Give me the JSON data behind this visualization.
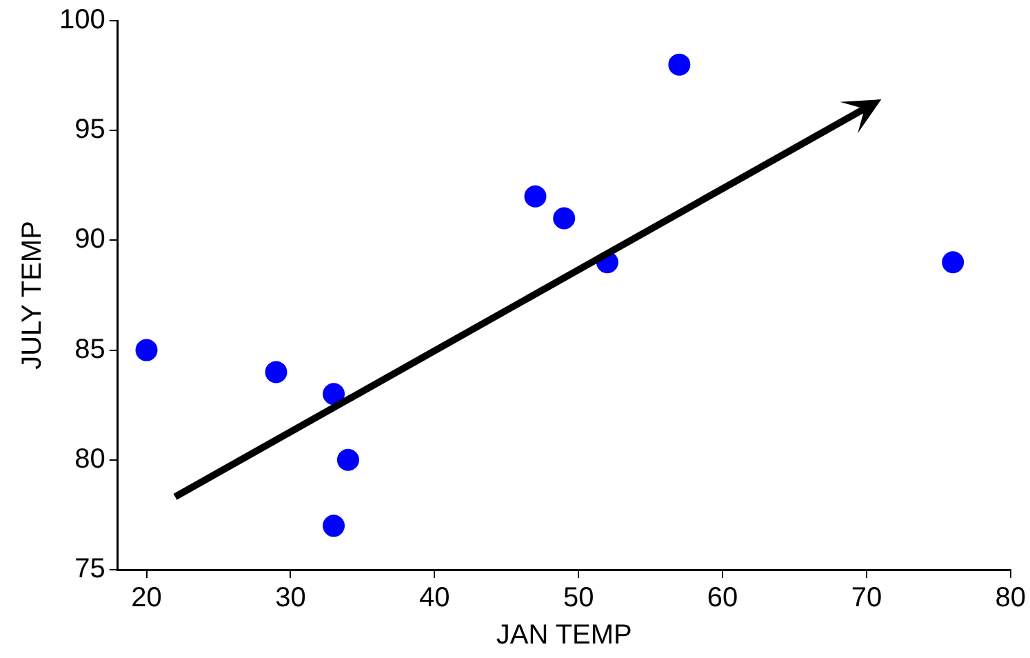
{
  "chart_data": {
    "type": "scatter",
    "xlabel": "JAN TEMP",
    "ylabel": "JULY TEMP",
    "x": [
      20,
      29,
      33,
      33,
      34,
      47,
      49,
      52,
      57,
      76
    ],
    "series": [
      {
        "color": "#0000ff",
        "values": [
          85,
          84,
          83,
          77,
          80,
          92,
          91,
          89,
          98,
          89
        ]
      }
    ],
    "xlim": [
      18,
      80
    ],
    "ylim": [
      75,
      100
    ],
    "xticks": [
      20,
      30,
      40,
      50,
      60,
      70,
      80
    ],
    "yticks": [
      75,
      80,
      85,
      90,
      95,
      100
    ],
    "grid": false,
    "legend": false,
    "marker": "circle"
  }
}
